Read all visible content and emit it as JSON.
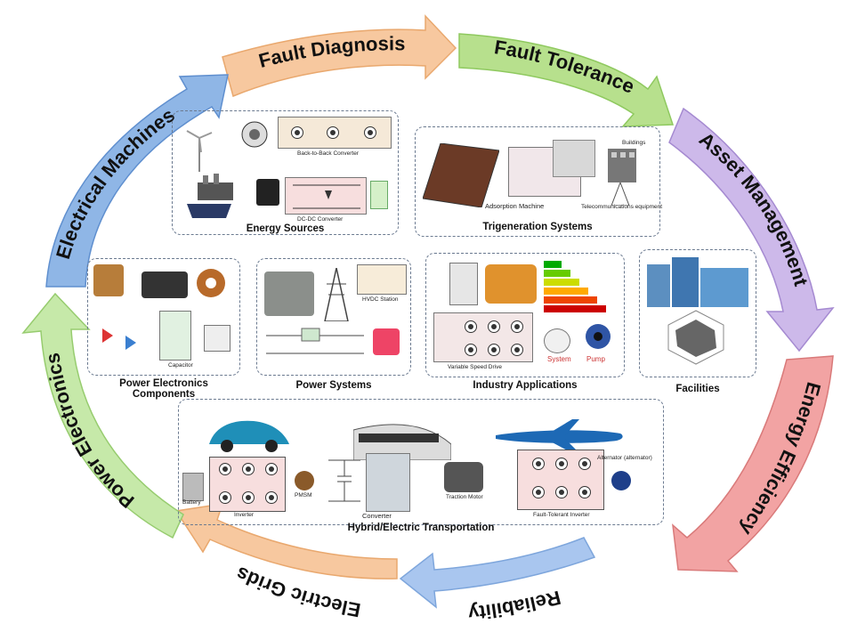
{
  "cycle": {
    "arrows": [
      {
        "key": "fault_diagnosis",
        "label": "Fault Diagnosis",
        "color": "#f7c89f"
      },
      {
        "key": "fault_tolerance",
        "label": "Fault Tolerance",
        "color": "#b7e08d"
      },
      {
        "key": "asset_management",
        "label": "Asset Management",
        "color": "#cdb9ea"
      },
      {
        "key": "energy_efficiency",
        "label": "Energy Efficiency",
        "color": "#f2a3a3"
      },
      {
        "key": "reliability",
        "label": "Reliability",
        "color": "#a9c6ef"
      },
      {
        "key": "electric_grids",
        "label": "Electric Grids",
        "color": "#f7c89f"
      },
      {
        "key": "power_electronics",
        "label": "Power Electronics",
        "color": "#c6e9a9"
      },
      {
        "key": "electrical_machines",
        "label": "Electrical Machines",
        "color": "#8fb6e6"
      }
    ]
  },
  "panels": {
    "energy_sources": {
      "title": "Energy Sources",
      "labels": {
        "back_to_back": "Back-to-Back Converter",
        "dc_dc": "DC-DC Converter"
      }
    },
    "trigeneration": {
      "title": "Trigeneration Systems",
      "labels": {
        "adsorption": "Adsorption Machine",
        "buildings": "Buildings",
        "telecom": "Telecommunications equipment"
      }
    },
    "power_electronics_components": {
      "title": "Power Electronics Components",
      "labels": {
        "capacitor": "Capacitor"
      }
    },
    "power_systems": {
      "title": "Power Systems",
      "labels": {
        "hvdc": "HVDC Station"
      }
    },
    "industry_applications": {
      "title": "Industry Applications",
      "labels": {
        "vsd": "Variable Speed Drive",
        "system": "System",
        "pump": "Pump"
      }
    },
    "facilities": {
      "title": "Facilities"
    },
    "transportation": {
      "title": "Hybrid/Electric Transportation",
      "labels": {
        "battery": "Battery",
        "inverter": "Inverter",
        "pmsm": "PMSM",
        "converter": "Converter",
        "traction_motor": "Traction Motor",
        "fault_tolerant_inverter": "Fault-Tolerant Inverter",
        "alternator": "Alternator (alternator)"
      }
    }
  }
}
